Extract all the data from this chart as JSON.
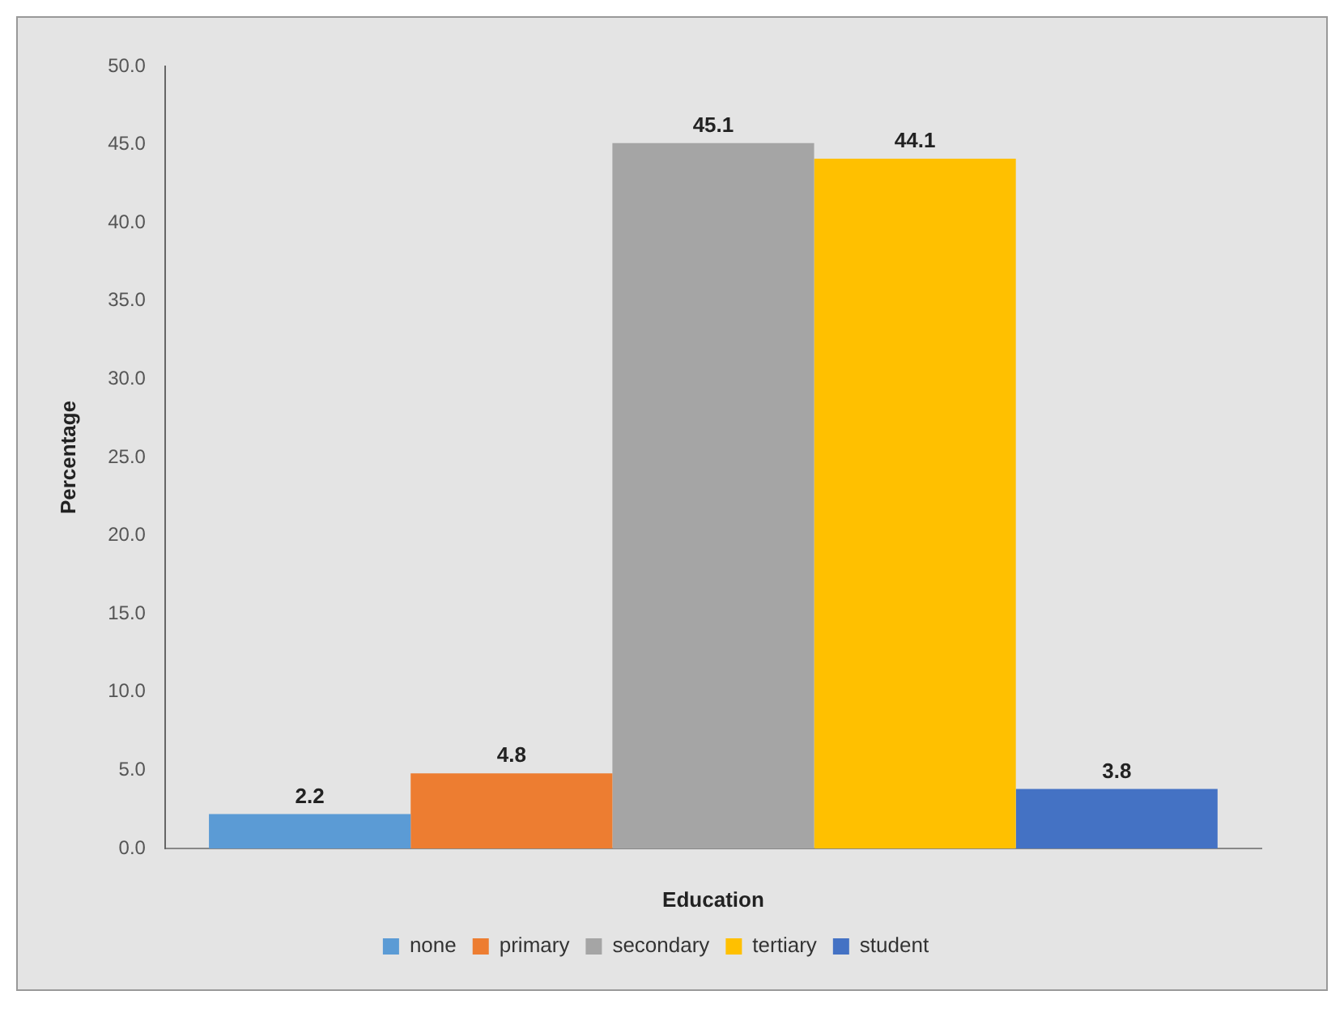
{
  "chart_data": {
    "type": "bar",
    "xlabel": "Education",
    "ylabel": "Percentage",
    "categories": [
      null
    ],
    "series": [
      {
        "name": "none",
        "color": "#5b9bd5",
        "values": [
          2.2
        ]
      },
      {
        "name": "primary",
        "color": "#ed7d31",
        "values": [
          4.8
        ]
      },
      {
        "name": "secondary",
        "color": "#a5a5a5",
        "values": [
          45.1
        ]
      },
      {
        "name": "tertiary",
        "color": "#ffc000",
        "values": [
          44.1
        ]
      },
      {
        "name": "student",
        "color": "#4472c4",
        "values": [
          3.8
        ]
      }
    ],
    "ylim": [
      0,
      50
    ],
    "yticks": [
      {
        "value": 0,
        "label": "0.0"
      },
      {
        "value": 5,
        "label": "5.0"
      },
      {
        "value": 10,
        "label": "10.0"
      },
      {
        "value": 15,
        "label": "15.0"
      },
      {
        "value": 20,
        "label": "20.0"
      },
      {
        "value": 25,
        "label": "25.0"
      },
      {
        "value": 30,
        "label": "30.0"
      },
      {
        "value": 35,
        "label": "35.0"
      },
      {
        "value": 40,
        "label": "40.0"
      },
      {
        "value": 45,
        "label": "45.0"
      },
      {
        "value": 50,
        "label": "50.0"
      }
    ],
    "grid": false,
    "legend": "bottom",
    "data_labels": true
  }
}
